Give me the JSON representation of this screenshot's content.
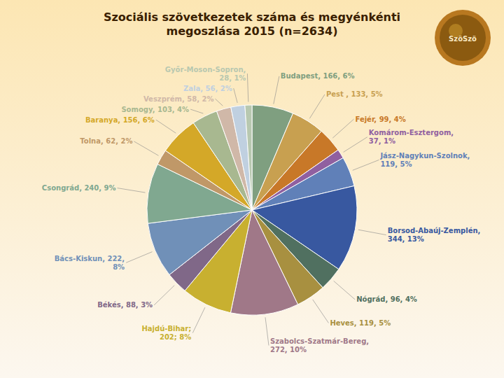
{
  "chart_data": {
    "type": "pie",
    "title": "Szociális szövetkezetek száma és megyénkénti\nmegoszlása 2015 (n=2634)",
    "categories": [
      "Budapest, 166, 6%",
      "Pest , 133, 5%",
      "Fejér, 99, 4%",
      "Komárom-Esztergom,\n37, 1%",
      "Jász-Nagykun-Szolnok,\n119, 5%",
      "Borsod-Abaúj-Zemplén,\n344, 13%",
      "Nógrád, 96, 4%",
      "Heves, 119, 5%",
      "Szabolcs-Szatmár-Bereg,\n272, 10%",
      "Hajdú-Bihar;\n202; 8%",
      "Békés, 88, 3%",
      "Bács-Kiskun, 222,\n8%",
      "Csongrád, 240, 9%",
      "Tolna, 62, 2%",
      "Baranya, 156, 6%",
      "Somogy, 103, 4%",
      "Veszprém, 58, 2%",
      "Zala, 56, 2%",
      "Győr-Moson-Sopron,\n28, 1%"
    ],
    "values": [
      166,
      133,
      99,
      37,
      119,
      344,
      96,
      119,
      272,
      202,
      88,
      222,
      240,
      62,
      156,
      103,
      58,
      56,
      28
    ],
    "colors": [
      "#7f9f80",
      "#c8a050",
      "#c87828",
      "#9060a0",
      "#6080b8",
      "#3858a0",
      "#507060",
      "#a89040",
      "#a07888",
      "#c8b030",
      "#806888",
      "#7090b8",
      "#80a890",
      "#c09868",
      "#d4a828",
      "#a8b890",
      "#d0b8a8",
      "#c0d0e0",
      "#b8c8b0"
    ],
    "annotations": [
      "SzöSzö"
    ]
  }
}
